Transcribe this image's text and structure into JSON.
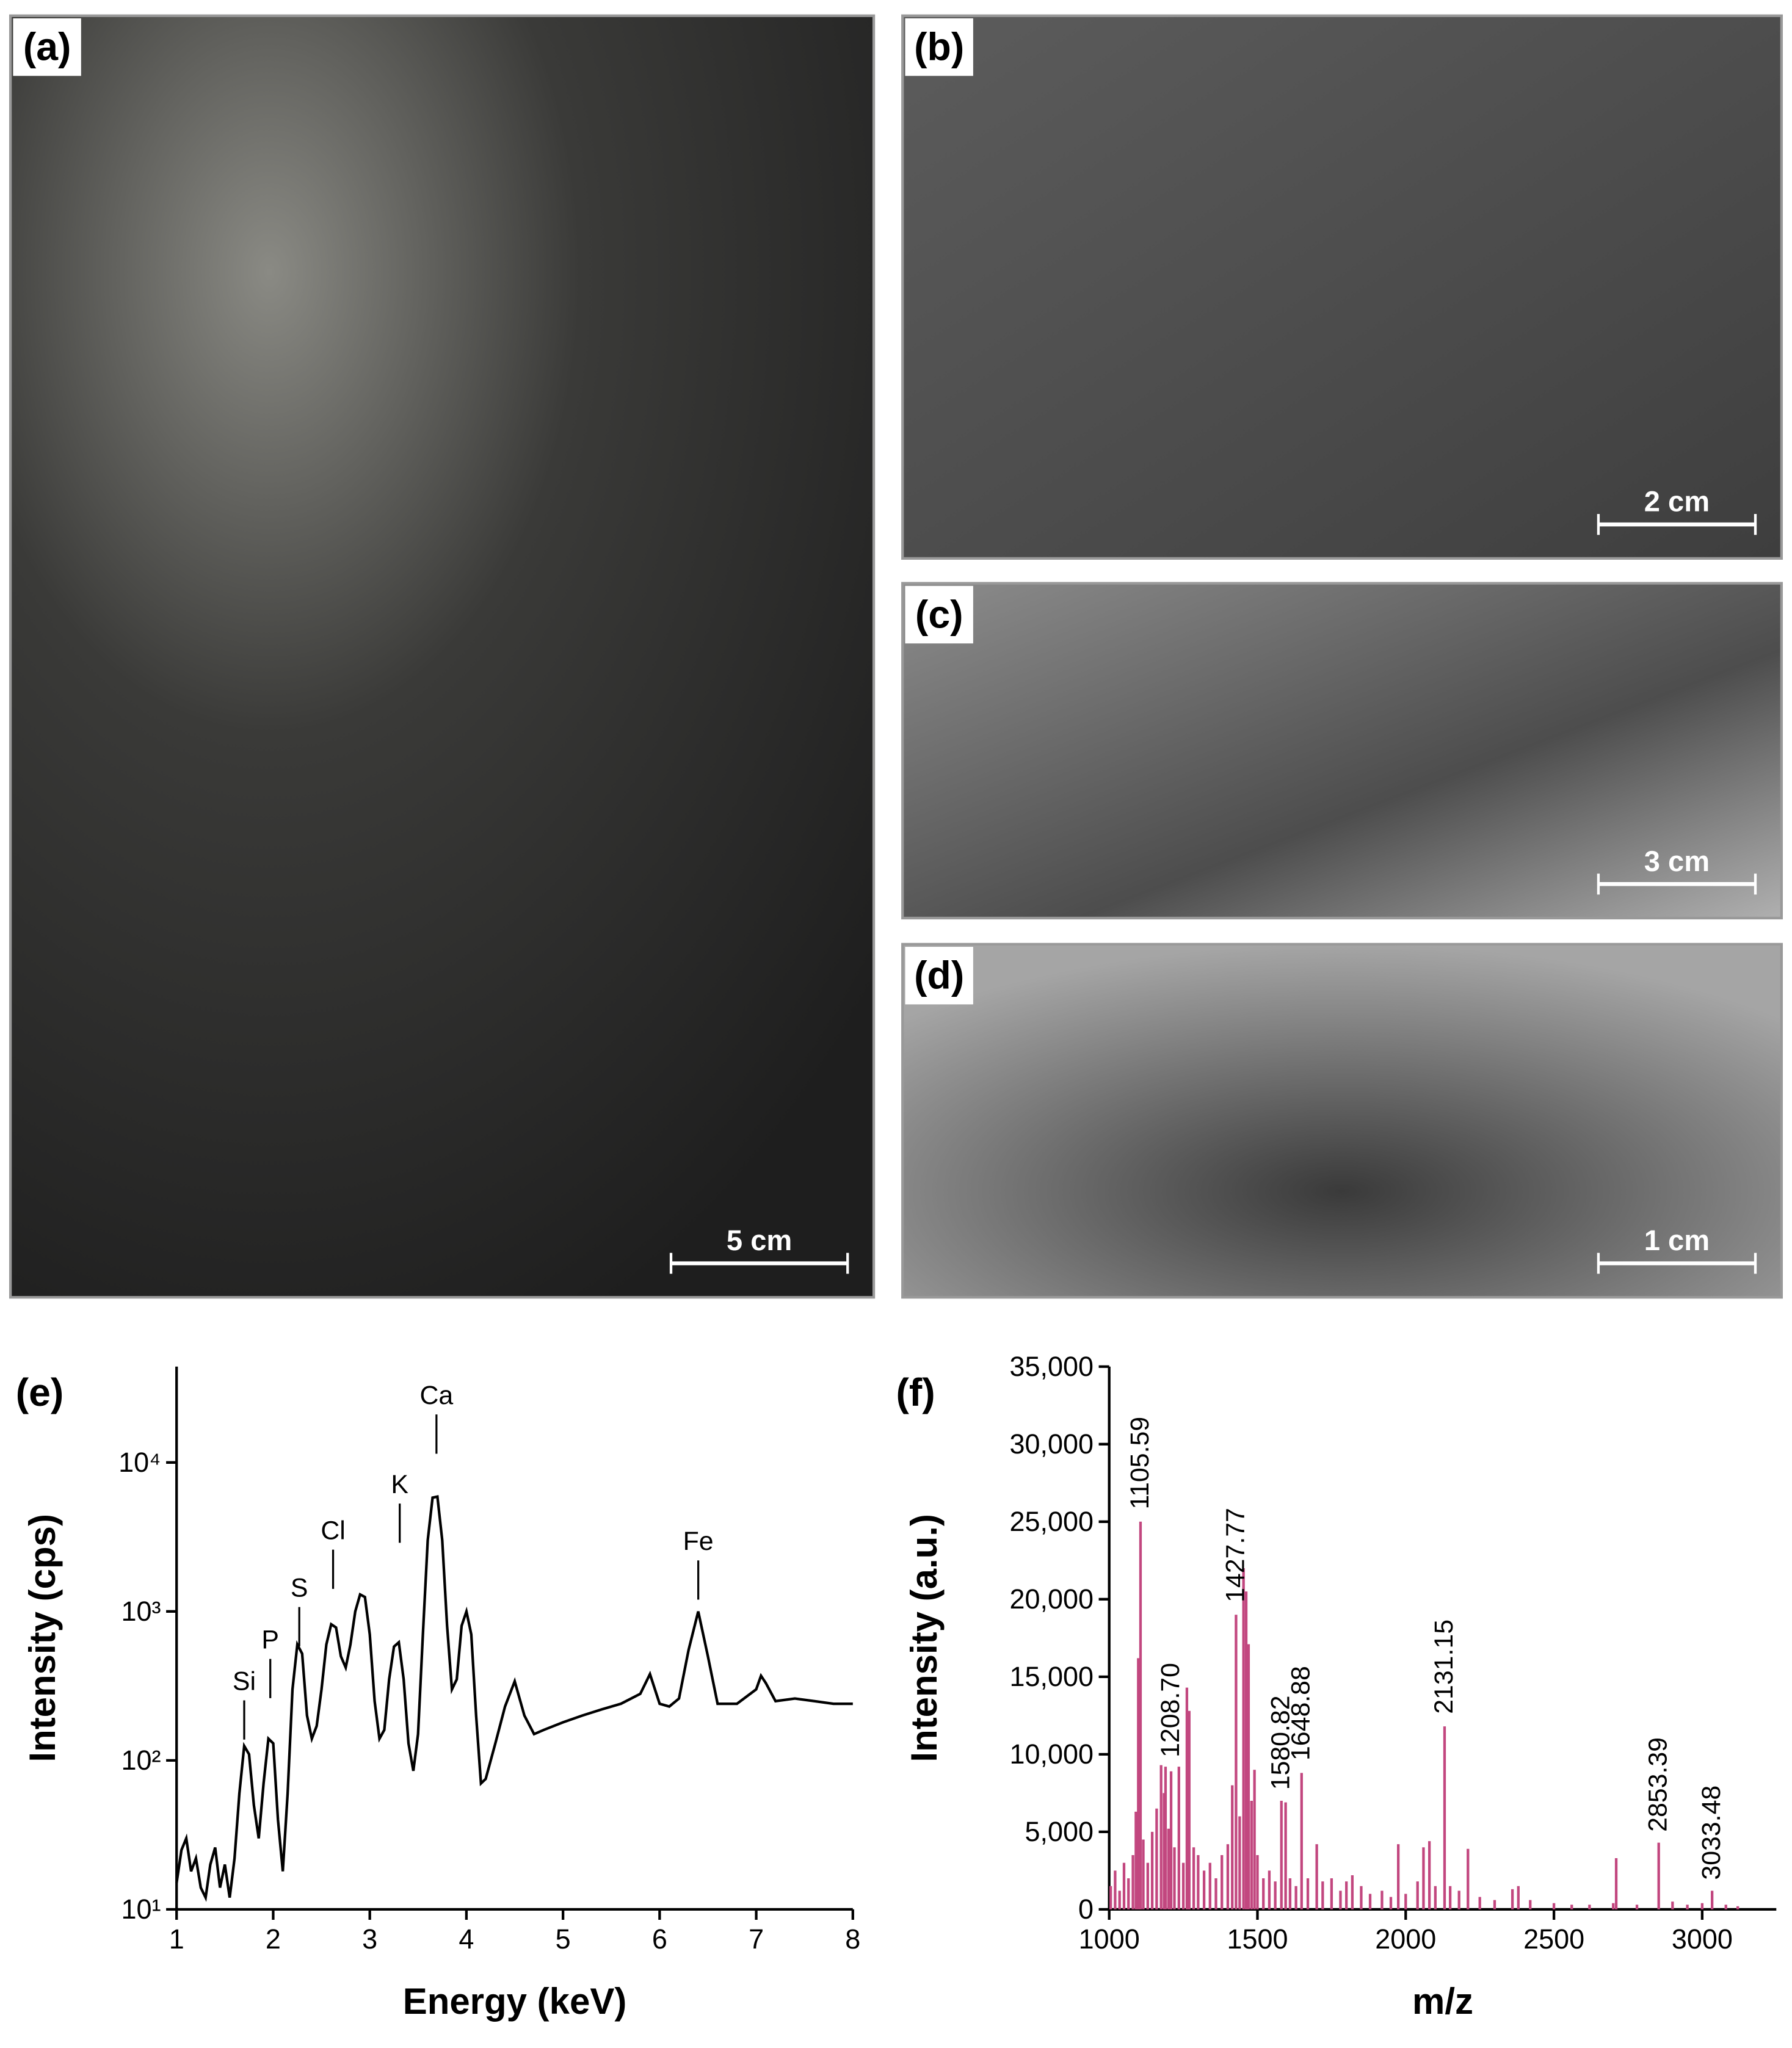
{
  "panels": [
    {
      "label": "(a)",
      "scale_bar": "5 cm"
    },
    {
      "label": "(b)",
      "scale_bar": "2 cm"
    },
    {
      "label": "(c)",
      "scale_bar": "3 cm"
    },
    {
      "label": "(d)",
      "scale_bar": "1 cm"
    }
  ],
  "chart_data": [
    {
      "type": "line",
      "panel_label": "(e)",
      "x_label": "Energy (keV)",
      "y_label": "Intensity (cps)",
      "color": "#000000",
      "y_scale": "log",
      "xlim": [
        1,
        8
      ],
      "xticks": [
        1,
        2,
        3,
        4,
        5,
        6,
        7,
        8
      ],
      "ylim": [
        10,
        44000
      ],
      "yticks": [
        {
          "value": 10,
          "label": "10¹"
        },
        {
          "value": 100,
          "label": "10²"
        },
        {
          "value": 1000,
          "label": "10³"
        },
        {
          "value": 10000,
          "label": "10⁴"
        }
      ],
      "x": [
        1.0,
        1.05,
        1.1,
        1.15,
        1.2,
        1.25,
        1.3,
        1.35,
        1.4,
        1.45,
        1.5,
        1.55,
        1.6,
        1.65,
        1.7,
        1.75,
        1.8,
        1.85,
        1.9,
        1.95,
        2.0,
        2.05,
        2.1,
        2.15,
        2.2,
        2.25,
        2.3,
        2.35,
        2.4,
        2.45,
        2.5,
        2.55,
        2.6,
        2.65,
        2.7,
        2.75,
        2.8,
        2.85,
        2.9,
        2.95,
        3.0,
        3.05,
        3.1,
        3.15,
        3.2,
        3.25,
        3.3,
        3.35,
        3.4,
        3.45,
        3.5,
        3.55,
        3.6,
        3.65,
        3.7,
        3.75,
        3.8,
        3.85,
        3.9,
        3.95,
        4.0,
        4.05,
        4.1,
        4.15,
        4.2,
        4.3,
        4.4,
        4.5,
        4.6,
        4.7,
        4.8,
        5.0,
        5.2,
        5.4,
        5.6,
        5.8,
        5.9,
        6.0,
        6.1,
        6.2,
        6.3,
        6.4,
        6.5,
        6.6,
        6.8,
        7.0,
        7.05,
        7.1,
        7.2,
        7.4,
        7.6,
        7.8,
        8.0
      ],
      "values": [
        15,
        25,
        30,
        18,
        22,
        14,
        12,
        20,
        26,
        14,
        20,
        12,
        22,
        60,
        125,
        110,
        50,
        30,
        70,
        140,
        130,
        40,
        18,
        60,
        300,
        600,
        520,
        200,
        140,
        170,
        300,
        600,
        820,
        780,
        500,
        420,
        600,
        1000,
        1300,
        1250,
        700,
        250,
        140,
        160,
        350,
        580,
        620,
        350,
        130,
        85,
        150,
        700,
        3000,
        5800,
        5900,
        3000,
        800,
        300,
        350,
        800,
        1000,
        700,
        200,
        70,
        75,
        130,
        230,
        340,
        200,
        150,
        160,
        180,
        200,
        220,
        240,
        280,
        380,
        240,
        230,
        260,
        550,
        1000,
        500,
        240,
        240,
        300,
        370,
        330,
        250,
        260,
        250,
        240,
        240
      ],
      "annotations": [
        {
          "text": "Si",
          "x": 1.7,
          "y": 253
        },
        {
          "text": "P",
          "x": 1.97,
          "y": 480
        },
        {
          "text": "S",
          "x": 2.27,
          "y": 1070
        },
        {
          "text": "Cl",
          "x": 2.62,
          "y": 2600
        },
        {
          "text": "K",
          "x": 3.31,
          "y": 5300
        },
        {
          "text": "Ca",
          "x": 3.69,
          "y": 21000
        },
        {
          "text": "Fe",
          "x": 6.4,
          "y": 2200
        }
      ]
    },
    {
      "type": "stem",
      "panel_label": "(f)",
      "x_label": "m/z",
      "y_label": "Intensity (a.u.)",
      "color": "#c2477f",
      "xlim": [
        1000,
        3250
      ],
      "xticks": [
        1000,
        1500,
        2000,
        2500,
        3000
      ],
      "ylim": [
        0,
        35000
      ],
      "yticks": [
        0,
        {
          "value": 5000,
          "label": "5,000"
        },
        {
          "value": 10000,
          "label": "10,000"
        },
        {
          "value": 15000,
          "label": "15,000"
        },
        {
          "value": 20000,
          "label": "20,000"
        },
        {
          "value": 25000,
          "label": "25,000"
        },
        {
          "value": 30000,
          "label": "30,000"
        },
        {
          "value": 35000,
          "label": "35,000"
        }
      ],
      "x": [
        1005,
        1020,
        1035,
        1050,
        1065,
        1080,
        1090,
        1098,
        1105.59,
        1115,
        1130,
        1145,
        1160,
        1175,
        1185,
        1190,
        1200,
        1208.7,
        1220,
        1235,
        1250,
        1262,
        1270,
        1285,
        1300,
        1320,
        1340,
        1360,
        1380,
        1400,
        1415,
        1427.77,
        1440,
        1453,
        1462,
        1470,
        1480,
        1490,
        1500,
        1520,
        1540,
        1560,
        1580.82,
        1595,
        1610,
        1630,
        1648.88,
        1670,
        1700,
        1720,
        1750,
        1780,
        1800,
        1820,
        1850,
        1880,
        1920,
        1950,
        1975,
        2000,
        2040,
        2060,
        2080,
        2100,
        2131.15,
        2150,
        2180,
        2210,
        2250,
        2300,
        2360,
        2380,
        2420,
        2500,
        2560,
        2620,
        2700,
        2710,
        2780,
        2853.39,
        2900,
        2950,
        3000,
        3033.48,
        3080,
        3120
      ],
      "values": [
        1500,
        2500,
        1200,
        3000,
        2000,
        3500,
        6300,
        16200,
        25000,
        4500,
        3000,
        5000,
        6500,
        9300,
        7500,
        9200,
        5200,
        8900,
        4000,
        9200,
        3000,
        14300,
        12800,
        4000,
        3500,
        2500,
        3000,
        2000,
        3500,
        4200,
        8000,
        19000,
        6000,
        22000,
        20500,
        17100,
        7000,
        9000,
        3500,
        2000,
        2500,
        1800,
        7000,
        6900,
        2000,
        1500,
        8800,
        2000,
        4200,
        1800,
        2000,
        1200,
        1800,
        2200,
        1500,
        1000,
        1200,
        800,
        4200,
        1000,
        1800,
        4000,
        4400,
        1500,
        11800,
        1500,
        1200,
        3900,
        800,
        600,
        1300,
        1500,
        600,
        400,
        300,
        300,
        400,
        3300,
        300,
        4300,
        500,
        300,
        400,
        1200,
        300,
        200
      ],
      "annotations": [
        {
          "text": "1105.59",
          "x": 1105.59,
          "y": 25800
        },
        {
          "text": "1208.70",
          "x": 1208.7,
          "y": 9800
        },
        {
          "text": "1427.77",
          "x": 1427.77,
          "y": 19800
        },
        {
          "text": "1580.82",
          "x": 1580.82,
          "y": 7700
        },
        {
          "text": "1648.88",
          "x": 1648.88,
          "y": 9600
        },
        {
          "text": "2131.15",
          "x": 2131.15,
          "y": 12600
        },
        {
          "text": "2853.39",
          "x": 2853.39,
          "y": 5000
        },
        {
          "text": "3033.48",
          "x": 3033.48,
          "y": 1900
        }
      ]
    }
  ]
}
